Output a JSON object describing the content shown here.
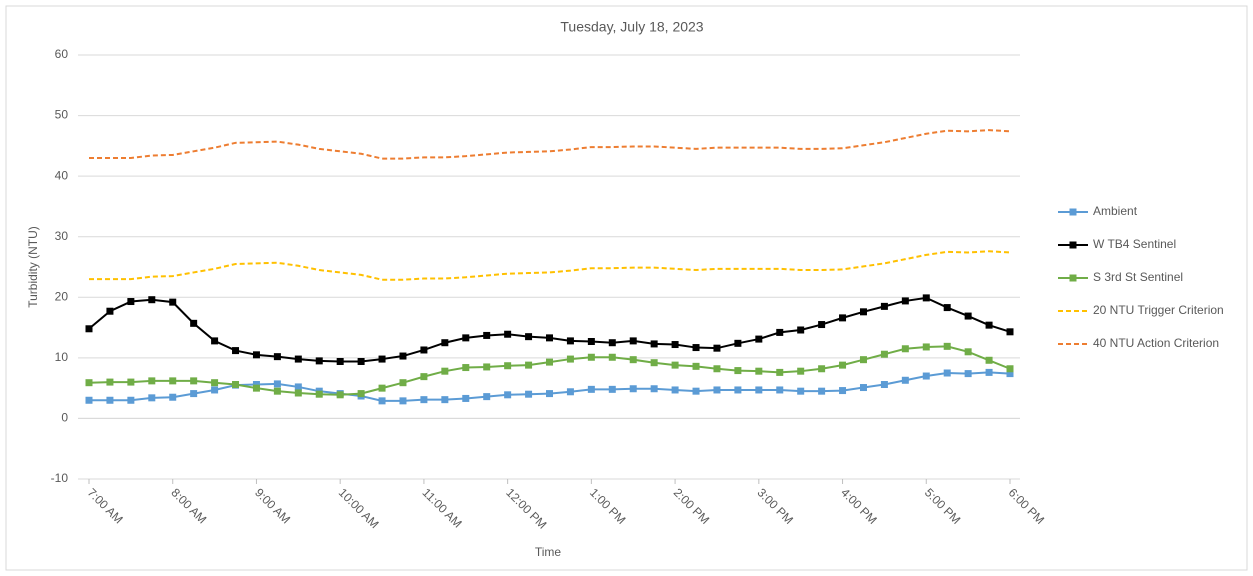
{
  "chart_data": {
    "type": "line",
    "title": "Tuesday, July 18, 2023",
    "x_label": "Time",
    "y_label": "Turbidity (NTU)",
    "categories": [
      "7:00 AM",
      null,
      null,
      null,
      "8:00 AM",
      null,
      null,
      null,
      "9:00 AM",
      null,
      null,
      null,
      "10:00 AM",
      null,
      null,
      null,
      "11:00 AM",
      null,
      null,
      null,
      "12:00 PM",
      null,
      null,
      null,
      "1:00 PM",
      null,
      null,
      null,
      "2:00 PM",
      null,
      null,
      null,
      "3:00 PM",
      null,
      null,
      null,
      "4:00 PM",
      null,
      null,
      null,
      "5:00 PM",
      null,
      null,
      null,
      "6:00 PM"
    ],
    "ylim": [
      -10,
      60
    ],
    "yticks": [
      -10,
      0,
      10,
      20,
      30,
      40,
      50,
      60
    ],
    "grid": true,
    "legend": "right",
    "series": [
      {
        "name": "Ambient",
        "color": "#5b9bd5",
        "marker": "square",
        "dash": false,
        "values": [
          3,
          3,
          3,
          3.4,
          3.5,
          4.1,
          4.7,
          5.5,
          5.6,
          5.7,
          5.2,
          4.5,
          4.1,
          3.7,
          2.9,
          2.9,
          3.1,
          3.1,
          3.3,
          3.6,
          3.9,
          4.0,
          4.1,
          4.4,
          4.8,
          4.8,
          4.9,
          4.9,
          4.7,
          4.5,
          4.7,
          4.7,
          4.7,
          4.7,
          4.5,
          4.5,
          4.6,
          5.1,
          5.6,
          6.3,
          7.0,
          7.5,
          7.4,
          7.6,
          7.4
        ]
      },
      {
        "name": "W TB4 Sentinel",
        "color": "#000000",
        "marker": "square",
        "dash": false,
        "values": [
          14.8,
          17.7,
          19.3,
          19.6,
          19.2,
          15.7,
          12.8,
          11.2,
          10.5,
          10.2,
          9.8,
          9.5,
          9.4,
          9.4,
          9.8,
          10.3,
          11.3,
          12.5,
          13.3,
          13.7,
          13.9,
          13.5,
          13.3,
          12.8,
          12.7,
          12.5,
          12.8,
          12.3,
          12.2,
          11.7,
          11.6,
          12.4,
          13.1,
          14.2,
          14.6,
          15.5,
          16.6,
          17.6,
          18.5,
          19.4,
          19.9,
          18.3,
          16.9,
          15.4,
          14.3
        ]
      },
      {
        "name": "S 3rd St Sentinel",
        "color": "#70ad47",
        "marker": "square",
        "dash": false,
        "values": [
          5.9,
          6.0,
          6.0,
          6.2,
          6.2,
          6.2,
          5.9,
          5.6,
          5.0,
          4.5,
          4.2,
          4.0,
          3.9,
          4.1,
          5.0,
          5.9,
          6.9,
          7.8,
          8.4,
          8.5,
          8.7,
          8.8,
          9.3,
          9.8,
          10.1,
          10.1,
          9.7,
          9.2,
          8.8,
          8.6,
          8.2,
          7.9,
          7.8,
          7.6,
          7.8,
          8.2,
          8.8,
          9.7,
          10.6,
          11.5,
          11.8,
          11.9,
          11.0,
          9.6,
          8.2
        ]
      },
      {
        "name": "20 NTU Trigger Criterion",
        "color": "#ffc000",
        "marker": "none",
        "dash": true,
        "values": [
          23,
          23,
          23,
          23.4,
          23.5,
          24.1,
          24.7,
          25.5,
          25.6,
          25.7,
          25.2,
          24.5,
          24.1,
          23.7,
          22.9,
          22.9,
          23.1,
          23.1,
          23.3,
          23.6,
          23.9,
          24.0,
          24.1,
          24.4,
          24.8,
          24.8,
          24.9,
          24.9,
          24.7,
          24.5,
          24.7,
          24.7,
          24.7,
          24.7,
          24.5,
          24.5,
          24.6,
          25.1,
          25.6,
          26.3,
          27.0,
          27.5,
          27.4,
          27.6,
          27.4
        ]
      },
      {
        "name": "40 NTU Action Criterion",
        "color": "#ed7d31",
        "marker": "none",
        "dash": true,
        "values": [
          43,
          43,
          43,
          43.4,
          43.5,
          44.1,
          44.7,
          45.5,
          45.6,
          45.7,
          45.2,
          44.5,
          44.1,
          43.7,
          42.9,
          42.9,
          43.1,
          43.1,
          43.3,
          43.6,
          43.9,
          44.0,
          44.1,
          44.4,
          44.8,
          44.8,
          44.9,
          44.9,
          44.7,
          44.5,
          44.7,
          44.7,
          44.7,
          44.7,
          44.5,
          44.5,
          44.6,
          45.1,
          45.6,
          46.3,
          47.0,
          47.5,
          47.4,
          47.6,
          47.4
        ]
      }
    ]
  }
}
